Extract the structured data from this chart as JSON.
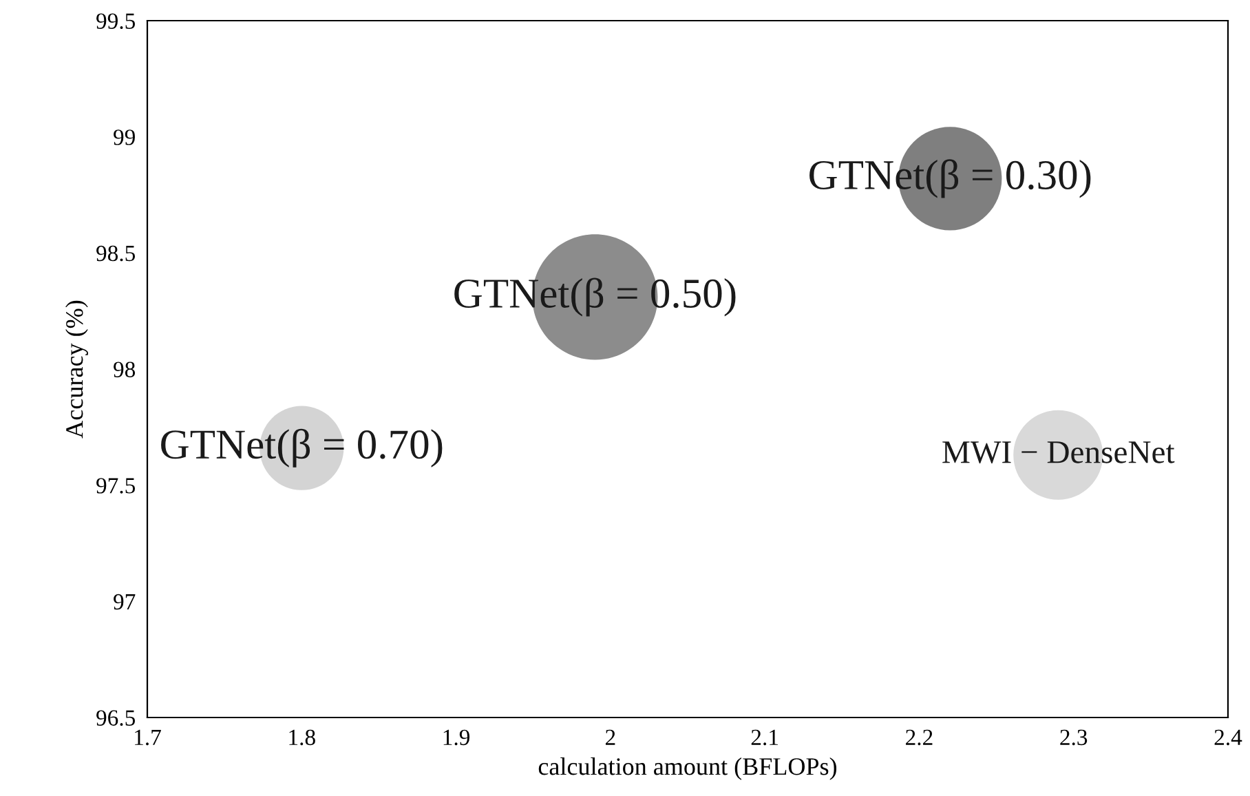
{
  "chart_data": {
    "type": "bubble",
    "xlabel": "calculation amount (BFLOPs)",
    "ylabel": "Accuracy (%)",
    "xlim": [
      1.7,
      2.4
    ],
    "xticks": [
      1.7,
      1.8,
      1.9,
      2,
      2.1,
      2.2,
      2.3,
      2.4
    ],
    "ylim": [
      96.5,
      99.5
    ],
    "yticks": [
      96.5,
      97,
      97.5,
      98,
      98.5,
      99,
      99.5
    ],
    "grid": false,
    "legend": false,
    "series": [
      {
        "name": "GTNet(β = 0.70)",
        "color": "#d4d4d4",
        "x": [
          1.8
        ],
        "values": [
          97.66
        ],
        "sizes": [
          0.45
        ]
      },
      {
        "name": "GTNet(β = 0.50)",
        "color": "#8c8c8c",
        "x": [
          1.99
        ],
        "values": [
          98.31
        ],
        "sizes": [
          1
        ]
      },
      {
        "name": "GTNet(β = 0.30)",
        "color": "#7f7f7f",
        "x": [
          2.22
        ],
        "values": [
          98.82
        ],
        "sizes": [
          0.68
        ]
      },
      {
        "name": "MWI − DenseNet",
        "color": "#d9d9d9",
        "x": [
          2.29
        ],
        "values": [
          97.63
        ],
        "sizes": [
          0.51
        ]
      }
    ]
  }
}
